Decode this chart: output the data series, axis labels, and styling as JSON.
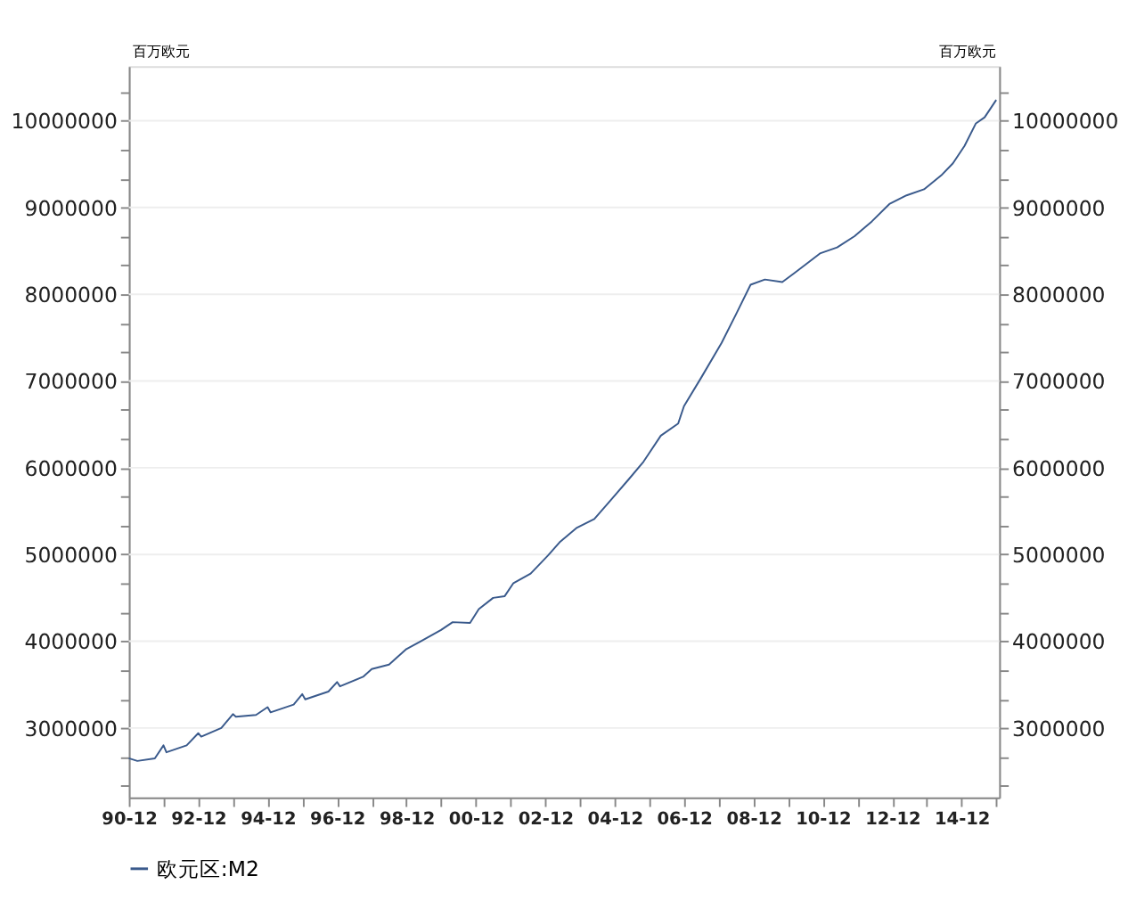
{
  "chart_data": {
    "type": "line",
    "ylabel": "百万欧元",
    "y2label": "百万欧元",
    "xlim": [
      "1990-12",
      "2016-01"
    ],
    "xticks": [
      {
        "value": "1990-12",
        "label": "90-12"
      },
      {
        "value": "1991-12",
        "label": null
      },
      {
        "value": "1992-12",
        "label": "92-12"
      },
      {
        "value": "1993-12",
        "label": null
      },
      {
        "value": "1994-12",
        "label": "94-12"
      },
      {
        "value": "1995-12",
        "label": null
      },
      {
        "value": "1996-12",
        "label": "96-12"
      },
      {
        "value": "1997-12",
        "label": null
      },
      {
        "value": "1998-12",
        "label": "98-12"
      },
      {
        "value": "1999-12",
        "label": null
      },
      {
        "value": "2000-12",
        "label": "00-12"
      },
      {
        "value": "2001-12",
        "label": null
      },
      {
        "value": "2002-12",
        "label": "02-12"
      },
      {
        "value": "2003-12",
        "label": null
      },
      {
        "value": "2004-12",
        "label": "04-12"
      },
      {
        "value": "2005-12",
        "label": null
      },
      {
        "value": "2006-12",
        "label": "06-12"
      },
      {
        "value": "2007-12",
        "label": null
      },
      {
        "value": "2008-12",
        "label": "08-12"
      },
      {
        "value": "2009-12",
        "label": null
      },
      {
        "value": "2010-12",
        "label": "10-12"
      },
      {
        "value": "2011-12",
        "label": null
      },
      {
        "value": "2012-12",
        "label": "12-12"
      },
      {
        "value": "2013-12",
        "label": null
      },
      {
        "value": "2014-12",
        "label": "14-12"
      },
      {
        "value": "2015-12",
        "label": null
      }
    ],
    "ylim": [
      2200000,
      10630000
    ],
    "yticks": [
      {
        "value": 2333333,
        "label": null
      },
      {
        "value": 2666667,
        "label": null
      },
      3000000,
      {
        "value": 3333333,
        "label": null
      },
      {
        "value": 3666667,
        "label": null
      },
      4000000,
      {
        "value": 4333333,
        "label": null
      },
      {
        "value": 4666667,
        "label": null
      },
      5000000,
      {
        "value": 5333333,
        "label": null
      },
      {
        "value": 5666667,
        "label": null
      },
      6000000,
      {
        "value": 6333333,
        "label": null
      },
      {
        "value": 6666667,
        "label": null
      },
      7000000,
      {
        "value": 7333333,
        "label": null
      },
      {
        "value": 7666667,
        "label": null
      },
      8000000,
      {
        "value": 8333333,
        "label": null
      },
      {
        "value": 8666667,
        "label": null
      },
      9000000,
      {
        "value": 9333333,
        "label": null
      },
      {
        "value": 9666667,
        "label": null
      },
      10000000,
      {
        "value": 10333333,
        "label": null
      }
    ],
    "y2lim": [
      2200000,
      10630000
    ],
    "y2ticks": [
      {
        "value": 2333333,
        "label": null
      },
      {
        "value": 2666667,
        "label": null
      },
      3000000,
      {
        "value": 3333333,
        "label": null
      },
      {
        "value": 3666667,
        "label": null
      },
      4000000,
      {
        "value": 4333333,
        "label": null
      },
      {
        "value": 4666667,
        "label": null
      },
      5000000,
      {
        "value": 5333333,
        "label": null
      },
      {
        "value": 5666667,
        "label": null
      },
      6000000,
      {
        "value": 6333333,
        "label": null
      },
      {
        "value": 6666667,
        "label": null
      },
      7000000,
      {
        "value": 7333333,
        "label": null
      },
      {
        "value": 7666667,
        "label": null
      },
      8000000,
      {
        "value": 8333333,
        "label": null
      },
      {
        "value": 8666667,
        "label": null
      },
      9000000,
      {
        "value": 9333333,
        "label": null
      },
      {
        "value": 9666667,
        "label": null
      },
      10000000,
      {
        "value": 10333333,
        "label": null
      }
    ],
    "grid": "y",
    "legend": "bottom",
    "marker": "none",
    "line_style": "solid",
    "x": [
      "1990-12",
      "1991-03",
      "1991-09",
      "1991-12",
      "1992-01",
      "1992-08",
      "1992-12",
      "1993-01",
      "1993-08",
      "1993-12",
      "1994-01",
      "1994-08",
      "1994-12",
      "1995-01",
      "1995-09",
      "1995-12",
      "1996-01",
      "1996-09",
      "1996-12",
      "1997-01",
      "1997-09",
      "1997-12",
      "1998-06",
      "1998-12",
      "1999-05",
      "1999-12",
      "2000-04",
      "2000-10",
      "2001-01",
      "2001-06",
      "2001-10",
      "2002-01",
      "2002-07",
      "2003-01",
      "2003-05",
      "2003-11",
      "2004-05",
      "2004-11",
      "2005-05",
      "2005-10",
      "2005-12",
      "2006-04",
      "2006-10",
      "2006-12",
      "2007-06",
      "2008-01",
      "2008-06",
      "2008-11",
      "2009-04",
      "2009-10",
      "2010-02",
      "2010-06",
      "2010-11",
      "2011-05",
      "2011-11",
      "2012-05",
      "2012-11",
      "2013-05",
      "2013-11",
      "2014-05",
      "2014-09",
      "2015-01",
      "2015-05",
      "2015-08",
      "2015-12"
    ],
    "series": [
      {
        "name": "欧元区:M2",
        "color": "#3a5a8c",
        "values": [
          2650000,
          2620000,
          2650000,
          2800000,
          2720000,
          2800000,
          2940000,
          2900000,
          3000000,
          3160000,
          3130000,
          3150000,
          3240000,
          3180000,
          3270000,
          3390000,
          3330000,
          3420000,
          3530000,
          3480000,
          3590000,
          3680000,
          3730000,
          3910000,
          4000000,
          4130000,
          4220000,
          4210000,
          4370000,
          4500000,
          4520000,
          4670000,
          4780000,
          4990000,
          5140000,
          5310000,
          5410000,
          5640000,
          5870000,
          6070000,
          6170000,
          6370000,
          6510000,
          6710000,
          7040000,
          7440000,
          7770000,
          8110000,
          8170000,
          8140000,
          8240000,
          8340000,
          8470000,
          8540000,
          8670000,
          8840000,
          9040000,
          9140000,
          9210000,
          9370000,
          9510000,
          9710000,
          9970000,
          10040000,
          10240000
        ]
      }
    ]
  }
}
